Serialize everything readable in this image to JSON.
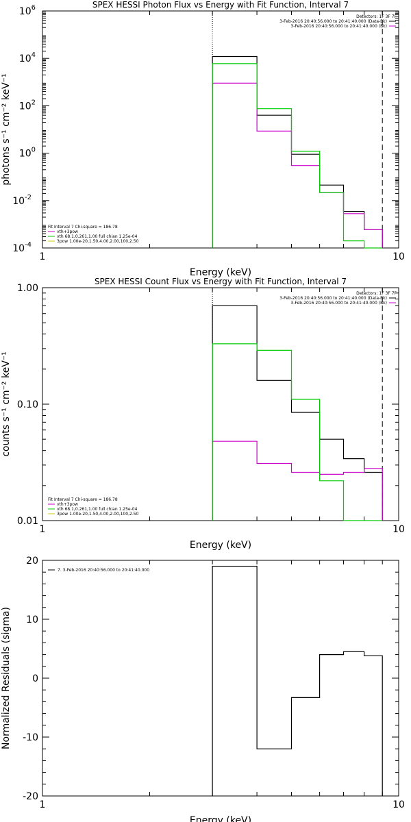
{
  "chart_data": [
    {
      "type": "line",
      "title": "SPEX HESSI Photon Flux vs Energy with Fit Function, Interval 7",
      "xlabel": "Energy (keV)",
      "ylabel": "photons s⁻¹ cm⁻² keV⁻¹",
      "xscale": "log",
      "yscale": "log",
      "xlim": [
        1,
        10
      ],
      "ylim": [
        0.0001,
        1000000
      ],
      "xticks": [
        {
          "v": 1,
          "label": "1"
        },
        {
          "v": 10,
          "label": "10"
        }
      ],
      "yticks": [
        {
          "v": 0.0001,
          "base": "10",
          "exp": "-4"
        },
        {
          "v": 0.01,
          "base": "10",
          "exp": "-2"
        },
        {
          "v": 1,
          "base": "10",
          "exp": "0"
        },
        {
          "v": 100,
          "base": "10",
          "exp": "2"
        },
        {
          "v": 10000,
          "base": "10",
          "exp": "4"
        },
        {
          "v": 1000000,
          "base": "10",
          "exp": "6"
        }
      ],
      "vlines": [
        {
          "x": 3,
          "style": "dotted"
        },
        {
          "x": 9,
          "style": "dashed"
        }
      ],
      "legend_tr": {
        "heading": "Detectors: 1F 3F 7F",
        "lines": [
          {
            "text": "3-Feb-2016 20:40:56.000 to 20:41:40.000 (Data-Bk)",
            "color": "#000000"
          },
          {
            "text": "3-Feb-2016 20:40:56.000 to 20:41:40.000 (Bk)",
            "color": "#cc00cc"
          }
        ]
      },
      "legend_bl": {
        "heading": "Fit Interval  7   Chi-square = 186.78",
        "lines": [
          {
            "text": "vth+3pow",
            "color": "#cc00cc"
          },
          {
            "text": "vth 68.1,0.261,1.00  full chian 1.25e-04",
            "color": "#00cc00"
          },
          {
            "text": "3pow 1.00e-20,1.50,4.00,2.00,100,2.50",
            "color": "#cccc00"
          }
        ]
      },
      "edges": [
        3,
        4,
        5,
        6,
        7,
        8,
        9
      ],
      "series": [
        {
          "name": "3-Feb-2016 20:40:56.000 to 20:41:40.000 (Data-Bk)",
          "color": "#000000",
          "values": [
            12000,
            40,
            0.9,
            0.045,
            0.0035,
            0.0006
          ]
        },
        {
          "name": "vth+3pow",
          "color": "#cc00cc",
          "values": [
            900,
            8.5,
            0.3,
            0.022,
            0.0028,
            0.0006
          ]
        },
        {
          "name": "vth 68.1,0.261,1.00  full chian 1.25e-04",
          "color": "#00cc00",
          "values": [
            6000,
            75,
            1.2,
            0.022,
            0.0002,
            0.0001
          ]
        }
      ]
    },
    {
      "type": "line",
      "title": "SPEX HESSI Count Flux vs Energy with Fit Function, Interval 7",
      "xlabel": "Energy (keV)",
      "ylabel": "counts s⁻¹ cm⁻² keV⁻¹",
      "xscale": "log",
      "yscale": "log",
      "xlim": [
        1,
        10
      ],
      "ylim": [
        0.01,
        1
      ],
      "xticks": [
        {
          "v": 1,
          "label": "1"
        },
        {
          "v": 10,
          "label": "10"
        }
      ],
      "yticks": [
        {
          "v": 0.01,
          "label": "0.01"
        },
        {
          "v": 0.1,
          "label": "0.10"
        },
        {
          "v": 1,
          "label": "1.00"
        }
      ],
      "vlines": [
        {
          "x": 3,
          "style": "dotted"
        },
        {
          "x": 9,
          "style": "dashed"
        }
      ],
      "legend_tr": {
        "heading": "Detectors: 1F 3F 7F",
        "lines": [
          {
            "text": "3-Feb-2016 20:40:56.000 to 20:41:40.000 (Data-Bk)",
            "color": "#000000"
          },
          {
            "text": "3-Feb-2016 20:40:56.000 to 20:41:40.000 (Bk)",
            "color": "#cc00cc"
          }
        ]
      },
      "legend_bl": {
        "heading": "Fit Interval  7   Chi-square = 186.78",
        "lines": [
          {
            "text": "vth+3pow",
            "color": "#cc00cc"
          },
          {
            "text": "vth 68.1,0.261,1.00  full chian 1.25e-04",
            "color": "#00cc00"
          },
          {
            "text": "3pow 1.00e-20,1.50,4.00,2.00,100,2.50",
            "color": "#cccc00"
          }
        ]
      },
      "edges": [
        3,
        4,
        5,
        6,
        7,
        8,
        9
      ],
      "series": [
        {
          "name": "3-Feb-2016 20:40:56.000 to 20:41:40.000 (Data-Bk)",
          "color": "#000000",
          "values": [
            0.7,
            0.16,
            0.085,
            0.05,
            0.034,
            0.026
          ]
        },
        {
          "name": "3-Feb-2016 20:40:56.000 to 20:41:40.000 (Bk)",
          "color": "#cc00cc",
          "values": [
            0.048,
            0.031,
            0.026,
            0.025,
            0.026,
            0.028
          ]
        },
        {
          "name": "vth 68.1,0.261,1.00  full chian 1.25e-04",
          "color": "#00cc00",
          "values": [
            0.33,
            0.29,
            0.11,
            0.022,
            0.01,
            0.01
          ]
        }
      ]
    },
    {
      "type": "line",
      "title": "",
      "xlabel": "Energy (keV)",
      "ylabel": "Normalized Residuals (sigma)",
      "xscale": "log",
      "yscale": "linear",
      "xlim": [
        1,
        10
      ],
      "ylim": [
        -20,
        20
      ],
      "xticks": [
        {
          "v": 1,
          "label": "1"
        },
        {
          "v": 10,
          "label": "10"
        }
      ],
      "yticks": [
        {
          "v": -20,
          "label": "-20"
        },
        {
          "v": -10,
          "label": "-10"
        },
        {
          "v": 0,
          "label": "0"
        },
        {
          "v": 10,
          "label": "10"
        },
        {
          "v": 20,
          "label": "20"
        }
      ],
      "vlines": [],
      "legend_tl": {
        "lines": [
          {
            "text": "7.  3-Feb-2016 20:40:56.000 to 20:41:40.000",
            "color": "#000000"
          }
        ]
      },
      "edges": [
        3,
        4,
        5,
        6,
        7,
        8,
        9
      ],
      "series": [
        {
          "name": "7.  3-Feb-2016 20:40:56.000 to 20:41:40.000",
          "color": "#000000",
          "values": [
            19,
            -12,
            -3.3,
            4,
            4.5,
            3.8
          ]
        }
      ]
    }
  ]
}
